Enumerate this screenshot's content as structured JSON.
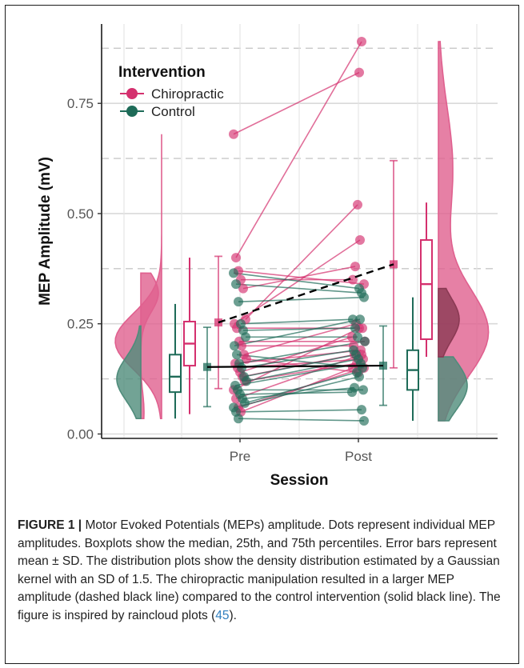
{
  "chart_data": {
    "type": "scatter",
    "xlabel": "Session",
    "ylabel": "MEP Amplitude (mV)",
    "categories": [
      "Pre",
      "Post"
    ],
    "ylim": [
      -0.01,
      0.93
    ],
    "yticks": [
      0.0,
      0.25,
      0.5,
      0.75
    ],
    "ytick_labels": [
      "0.00",
      "0.25",
      "0.50",
      "0.75"
    ],
    "legend": {
      "title": "Intervention",
      "placement": "top-left",
      "entries": [
        "Chiropractic",
        "Control"
      ]
    },
    "colors": {
      "Chiropractic": "#d4306e",
      "Control": "#1e6b58",
      "mean_line": "#000000",
      "grid": "#d9d9d9",
      "dash_grid": "#c8c8c8"
    },
    "series": [
      {
        "name": "Chiropractic",
        "pre": [
          0.68,
          0.4,
          0.37,
          0.35,
          0.33,
          0.26,
          0.25,
          0.24,
          0.21,
          0.2,
          0.18,
          0.17,
          0.16,
          0.15,
          0.14,
          0.13,
          0.12,
          0.1,
          0.08,
          0.06,
          0.05
        ],
        "post": [
          0.82,
          0.89,
          0.34,
          0.35,
          0.38,
          0.52,
          0.44,
          0.24,
          0.21,
          0.2,
          0.25,
          0.14,
          0.19,
          0.17,
          0.22,
          0.18,
          0.16,
          0.24,
          0.18,
          0.15,
          0.15
        ],
        "mean": [
          0.253,
          0.385
        ],
        "sd": [
          0.15,
          0.235
        ],
        "box": {
          "lower_whisker": 0.045,
          "q1": 0.155,
          "median": 0.205,
          "q3": 0.255,
          "upper_whisker": 0.4
        },
        "box_post": {
          "lower_whisker": 0.175,
          "q1": 0.215,
          "median": 0.34,
          "q3": 0.44,
          "upper_whisker": 0.525
        }
      },
      {
        "name": "Control",
        "pre": [
          0.365,
          0.34,
          0.3,
          0.25,
          0.235,
          0.22,
          0.2,
          0.18,
          0.16,
          0.15,
          0.13,
          0.12,
          0.11,
          0.1,
          0.09,
          0.08,
          0.07,
          0.06,
          0.05,
          0.035
        ],
        "post": [
          0.33,
          0.32,
          0.31,
          0.26,
          0.24,
          0.22,
          0.26,
          0.15,
          0.21,
          0.19,
          0.18,
          0.17,
          0.16,
          0.1,
          0.095,
          0.105,
          0.14,
          0.13,
          0.055,
          0.03
        ],
        "mean": [
          0.152,
          0.155
        ],
        "sd": [
          0.09,
          0.09
        ],
        "box": {
          "lower_whisker": 0.035,
          "q1": 0.095,
          "median": 0.13,
          "q3": 0.18,
          "upper_whisker": 0.295
        },
        "box_post": {
          "lower_whisker": 0.03,
          "q1": 0.1,
          "median": 0.145,
          "q3": 0.19,
          "upper_whisker": 0.31
        }
      }
    ]
  },
  "caption": {
    "figure_label": "FIGURE 1 |",
    "body": " Motor Evoked Potentials (MEPs) amplitude. Dots represent individual MEP amplitudes. Boxplots show the median, 25th, and 75th percentiles. Error bars represent mean ± SD. The distribution plots show the density distribution estimated by a Gaussian kernel with an SD of 1.5. The chiropractic manipulation resulted in a larger MEP amplitude (dashed black line) compared to the control intervention (solid black line). The figure is inspired by raincloud plots (",
    "reference": "45",
    "end": ")."
  }
}
